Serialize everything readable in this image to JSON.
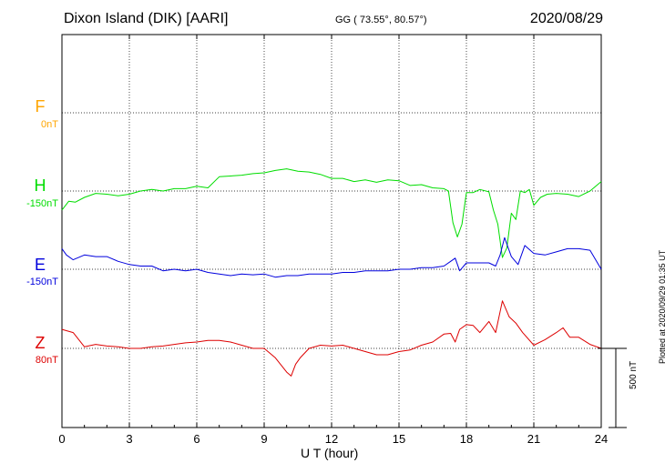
{
  "header": {
    "title": "Dixon Island (DIK)  [AARI]",
    "coords": "GG ( 73.55°,  80.57°)",
    "date": "2020/08/29"
  },
  "channels": [
    {
      "name": "F",
      "offset": "0nT",
      "color": "#ffa500"
    },
    {
      "name": "H",
      "offset": "-150nT",
      "color": "#00dd00"
    },
    {
      "name": "E",
      "offset": "-150nT",
      "color": "#0000dd"
    },
    {
      "name": "Z",
      "offset": "80nT",
      "color": "#dd0000"
    }
  ],
  "side_note": "Plotted at 2020/09/29 01:35 UT",
  "scale_label": "500 nT",
  "chart_data": {
    "type": "line",
    "xlabel": "U T (hour)",
    "xlim": [
      0,
      24
    ],
    "x_ticks": [
      "0",
      "3",
      "6",
      "9",
      "12",
      "15",
      "18",
      "21",
      "24"
    ],
    "grid": true,
    "scale_bar_nT": 500,
    "series": [
      {
        "name": "H",
        "color": "#00dd00",
        "x": [
          0,
          0.3,
          0.6,
          1,
          1.5,
          2,
          2.5,
          3,
          3.5,
          4,
          4.5,
          5,
          5.5,
          6,
          6.5,
          7,
          7.5,
          8,
          8.5,
          9,
          9.5,
          10,
          10.5,
          11,
          11.5,
          12,
          12.5,
          13,
          13.5,
          14,
          14.5,
          15,
          15.5,
          16,
          16.5,
          17,
          17.2,
          17.4,
          17.6,
          17.8,
          18,
          18.3,
          18.6,
          19,
          19.2,
          19.4,
          19.6,
          19.8,
          20,
          20.2,
          20.4,
          20.6,
          20.8,
          21,
          21.3,
          21.6,
          22,
          22.5,
          23,
          23.5,
          24
        ],
        "values": [
          -120,
          -65,
          -70,
          -40,
          -15,
          -20,
          -30,
          -20,
          0,
          10,
          0,
          15,
          15,
          30,
          20,
          90,
          95,
          100,
          110,
          115,
          130,
          140,
          125,
          120,
          105,
          80,
          80,
          60,
          70,
          55,
          70,
          65,
          35,
          40,
          20,
          15,
          0,
          -200,
          -290,
          -210,
          -10,
          -10,
          10,
          -5,
          -120,
          -210,
          -420,
          -360,
          -140,
          -180,
          0,
          -10,
          10,
          -90,
          -40,
          -20,
          -15,
          -20,
          -35,
          0,
          60
        ]
      },
      {
        "name": "E",
        "color": "#0000dd",
        "x": [
          0,
          0.2,
          0.5,
          1,
          1.5,
          2,
          2.5,
          3,
          3.5,
          4,
          4.5,
          5,
          5.5,
          6,
          6.5,
          7,
          7.5,
          8,
          8.5,
          9,
          9.5,
          10,
          10.5,
          11,
          11.5,
          12,
          12.5,
          13,
          13.5,
          14,
          14.5,
          15,
          15.5,
          16,
          16.5,
          17,
          17.3,
          17.5,
          17.7,
          18,
          18.5,
          19,
          19.3,
          19.5,
          19.7,
          20,
          20.3,
          20.6,
          21,
          21.5,
          22,
          22.5,
          23,
          23.5,
          24
        ],
        "values": [
          130,
          90,
          60,
          90,
          80,
          80,
          50,
          30,
          20,
          20,
          -10,
          0,
          -10,
          0,
          -20,
          -30,
          -40,
          -30,
          -35,
          -30,
          -50,
          -40,
          -40,
          -30,
          -30,
          -30,
          -20,
          -20,
          -10,
          -10,
          -10,
          0,
          0,
          10,
          10,
          20,
          50,
          70,
          -10,
          40,
          40,
          40,
          20,
          90,
          200,
          80,
          30,
          150,
          100,
          90,
          110,
          130,
          130,
          120,
          0
        ]
      },
      {
        "name": "Z",
        "color": "#dd0000",
        "x": [
          0,
          0.5,
          1,
          1.5,
          2,
          2.5,
          3,
          3.5,
          4,
          4.5,
          5,
          5.5,
          6,
          6.5,
          7,
          7.5,
          8,
          8.5,
          9,
          9.5,
          10,
          10.2,
          10.4,
          10.6,
          11,
          11.5,
          12,
          12.5,
          13,
          13.5,
          14,
          14.5,
          15,
          15.5,
          16,
          16.5,
          17,
          17.3,
          17.5,
          17.7,
          18,
          18.3,
          18.6,
          19,
          19.3,
          19.6,
          19.9,
          20.2,
          20.5,
          21,
          21.5,
          22,
          22.3,
          22.6,
          23,
          23.5,
          24
        ],
        "values": [
          120,
          100,
          10,
          25,
          15,
          10,
          0,
          0,
          10,
          15,
          25,
          35,
          40,
          50,
          50,
          40,
          20,
          0,
          0,
          -60,
          -150,
          -175,
          -100,
          -60,
          0,
          20,
          15,
          20,
          0,
          -20,
          -40,
          -40,
          -20,
          -10,
          20,
          40,
          90,
          95,
          40,
          120,
          150,
          145,
          100,
          170,
          100,
          300,
          200,
          160,
          100,
          20,
          55,
          100,
          130,
          70,
          70,
          25,
          0
        ]
      }
    ]
  }
}
